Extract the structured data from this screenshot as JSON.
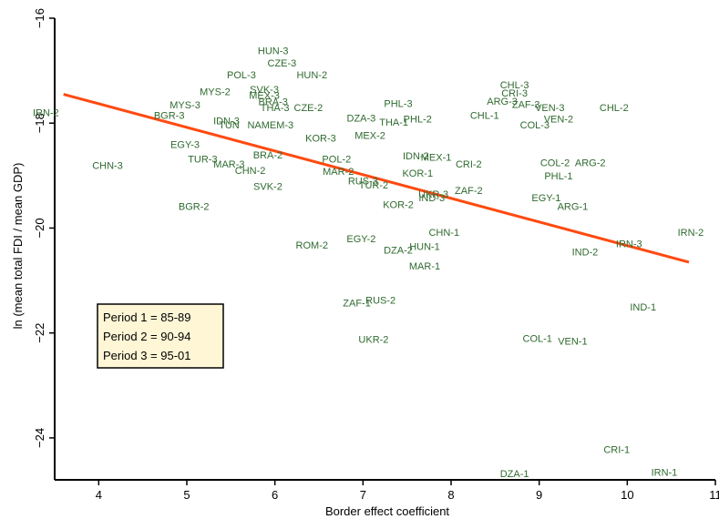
{
  "chart_data": {
    "type": "scatter",
    "title": "",
    "xlabel": "Border effect coefficient",
    "ylabel": "ln (mean total FDI / mean GDP)",
    "xlim": [
      3.5,
      11
    ],
    "ylim": [
      -24.8,
      -16
    ],
    "xticks": [
      "4",
      "5",
      "6",
      "7",
      "8",
      "9",
      "10",
      "11"
    ],
    "yticks": [
      "-16",
      "-18",
      "-20",
      "-22",
      "-24"
    ],
    "grid": false,
    "fit_line": {
      "x": [
        3.6,
        10.7
      ],
      "y": [
        -17.45,
        -20.65
      ],
      "color": "#ff4a10"
    },
    "legend": {
      "placement": "bottom-left",
      "items": [
        "Period 1 = 85-89",
        "Period 2 = 90-94",
        "Period 3 = 95-01"
      ],
      "background": "#fff6d6"
    },
    "point_color": "#2f6a2f",
    "points": [
      {
        "label": "HUN-3",
        "x": 5.98,
        "y": -16.62
      },
      {
        "label": "CZE-3",
        "x": 6.08,
        "y": -16.85
      },
      {
        "label": "POL-3",
        "x": 5.62,
        "y": -17.08
      },
      {
        "label": "HUN-2",
        "x": 6.42,
        "y": -17.08
      },
      {
        "label": "MYS-2",
        "x": 5.32,
        "y": -17.4
      },
      {
        "label": "SVK-3",
        "x": 5.88,
        "y": -17.35
      },
      {
        "label": "MEX-3",
        "x": 5.88,
        "y": -17.47
      },
      {
        "label": "BRA-3",
        "x": 5.98,
        "y": -17.59
      },
      {
        "label": "THA-3",
        "x": 6.0,
        "y": -17.7
      },
      {
        "label": "CZE-2",
        "x": 6.38,
        "y": -17.7
      },
      {
        "label": "MYS-3",
        "x": 4.98,
        "y": -17.65
      },
      {
        "label": "IRN-2",
        "x": 3.4,
        "y": -17.8
      },
      {
        "label": "BGR-3",
        "x": 4.8,
        "y": -17.85
      },
      {
        "label": "IDN-3",
        "x": 5.45,
        "y": -17.95
      },
      {
        "label": "TUN",
        "x": 5.48,
        "y": -18.03
      },
      {
        "label": "NAMEM-3",
        "x": 5.95,
        "y": -18.03
      },
      {
        "label": "DZA-3",
        "x": 6.98,
        "y": -17.9
      },
      {
        "label": "THA-1",
        "x": 7.35,
        "y": -17.98
      },
      {
        "label": "PHL-3",
        "x": 7.4,
        "y": -17.62
      },
      {
        "label": "PHL-2",
        "x": 7.62,
        "y": -17.92
      },
      {
        "label": "CHL-3",
        "x": 8.72,
        "y": -17.27
      },
      {
        "label": "CRI-3",
        "x": 8.72,
        "y": -17.42
      },
      {
        "label": "ARG-3",
        "x": 8.58,
        "y": -17.58
      },
      {
        "label": "ZAF-3",
        "x": 8.85,
        "y": -17.64
      },
      {
        "label": "VEN-3",
        "x": 9.12,
        "y": -17.7
      },
      {
        "label": "CHL-2",
        "x": 9.85,
        "y": -17.7
      },
      {
        "label": "CHL-1",
        "x": 8.38,
        "y": -17.85
      },
      {
        "label": "VEN-2",
        "x": 9.22,
        "y": -17.92
      },
      {
        "label": "COL-3",
        "x": 8.95,
        "y": -18.03
      },
      {
        "label": "EGY-3",
        "x": 4.98,
        "y": -18.4
      },
      {
        "label": "KOR-3",
        "x": 6.52,
        "y": -18.28
      },
      {
        "label": "MEX-2",
        "x": 7.08,
        "y": -18.23
      },
      {
        "label": "TUR-3",
        "x": 5.18,
        "y": -18.68
      },
      {
        "label": "MAR-3",
        "x": 5.48,
        "y": -18.78
      },
      {
        "label": "BRA-2",
        "x": 5.92,
        "y": -18.6
      },
      {
        "label": "CHN-2",
        "x": 5.72,
        "y": -18.9
      },
      {
        "label": "POL-2",
        "x": 6.7,
        "y": -18.68
      },
      {
        "label": "CHN-3",
        "x": 4.1,
        "y": -18.8
      },
      {
        "label": "IDN-2",
        "x": 7.6,
        "y": -18.62
      },
      {
        "label": "MEX-1",
        "x": 7.83,
        "y": -18.65
      },
      {
        "label": "CRI-2",
        "x": 8.2,
        "y": -18.78
      },
      {
        "label": "COL-2",
        "x": 9.18,
        "y": -18.75
      },
      {
        "label": "ARG-2",
        "x": 9.58,
        "y": -18.75
      },
      {
        "label": "MAR-2",
        "x": 6.72,
        "y": -18.92
      },
      {
        "label": "KOR-1",
        "x": 7.62,
        "y": -18.95
      },
      {
        "label": "PHL-1",
        "x": 9.22,
        "y": -19.0
      },
      {
        "label": "SVK-2",
        "x": 5.92,
        "y": -19.2
      },
      {
        "label": "RUS-3",
        "x": 7.0,
        "y": -19.1
      },
      {
        "label": "TUR-2",
        "x": 7.12,
        "y": -19.18
      },
      {
        "label": "UKR-3",
        "x": 7.8,
        "y": -19.35
      },
      {
        "label": "IND-3",
        "x": 7.78,
        "y": -19.42
      },
      {
        "label": "ZAF-2",
        "x": 8.2,
        "y": -19.28
      },
      {
        "label": "KOR-2",
        "x": 7.4,
        "y": -19.55
      },
      {
        "label": "BGR-2",
        "x": 5.08,
        "y": -19.58
      },
      {
        "label": "EGY-1",
        "x": 9.08,
        "y": -19.42
      },
      {
        "label": "ARG-1",
        "x": 9.38,
        "y": -19.58
      },
      {
        "label": "CHN-1",
        "x": 7.92,
        "y": -20.08
      },
      {
        "label": "IRN-2",
        "x": 10.72,
        "y": -20.08
      },
      {
        "label": "EGY-2",
        "x": 6.98,
        "y": -20.2
      },
      {
        "label": "ROM-2",
        "x": 6.42,
        "y": -20.32
      },
      {
        "label": "HUN-1",
        "x": 7.7,
        "y": -20.35
      },
      {
        "label": "DZA-2",
        "x": 7.4,
        "y": -20.42
      },
      {
        "label": "IRN-3",
        "x": 10.02,
        "y": -20.3
      },
      {
        "label": "IND-2",
        "x": 9.52,
        "y": -20.45
      },
      {
        "label": "MAR-1",
        "x": 7.7,
        "y": -20.72
      },
      {
        "label": "ZAF-1",
        "x": 6.93,
        "y": -21.42
      },
      {
        "label": "RUS-2",
        "x": 7.2,
        "y": -21.37
      },
      {
        "label": "IND-1",
        "x": 10.18,
        "y": -21.5
      },
      {
        "label": "UKR-2",
        "x": 7.12,
        "y": -22.12
      },
      {
        "label": "COL-1",
        "x": 8.98,
        "y": -22.1
      },
      {
        "label": "VEN-1",
        "x": 9.38,
        "y": -22.15
      },
      {
        "label": "CRI-1",
        "x": 9.88,
        "y": -24.22
      },
      {
        "label": "DZA-1",
        "x": 8.72,
        "y": -24.68
      },
      {
        "label": "IRN-1",
        "x": 10.42,
        "y": -24.65
      }
    ]
  }
}
